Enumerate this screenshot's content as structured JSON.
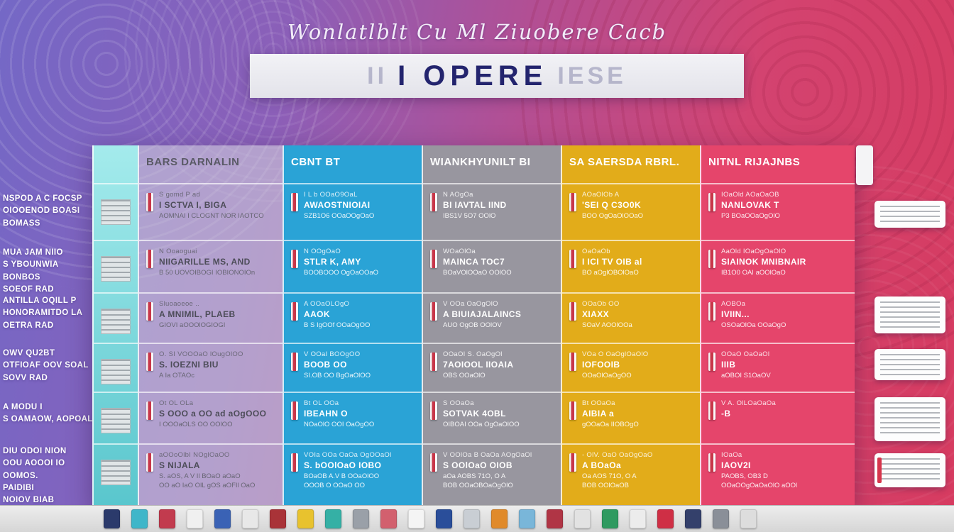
{
  "page": {
    "script_title": "Wonlatlblt Cu Ml Ziuobere Cacb",
    "banner": {
      "prefix": "II",
      "main": "I OPERE",
      "suffix": "IESE"
    }
  },
  "palette": {
    "teal": "#6fd3d8",
    "light": "#d5d5df",
    "blue": "#2aa3d6",
    "gray": "#98969f",
    "yellow": "#e2ac1a",
    "pink": "#e5456b",
    "background_left": "#7468c6",
    "background_right": "#d63b60"
  },
  "left_labels": [
    [
      "NSPOD A C FOCSP",
      "OIOOENOD BOASI",
      "BOMASS"
    ],
    [
      "MUA JAM NIIO",
      "S YBOUNWIA BONBOS",
      "SOEOF RAD"
    ],
    [
      "ANTILLA  OQILL P",
      "HONORAMITDO LA",
      "OETRA RAD"
    ],
    [
      "OWV QU2BT",
      "OTFIOAF OOV SOAL",
      "SOVV RAD"
    ],
    [
      "A  MODU I",
      "S OAMAOW, AOPOAL"
    ],
    [
      "DIU ODOI NION",
      "OOU AOOOI IO OOMOS.",
      "PAIDIBI",
      "NOIOV BIAB"
    ]
  ],
  "columns": [
    {
      "key": "light",
      "header": "BARS DARNALIN",
      "color": "#d5d5df",
      "rows": [
        {
          "top": "S gomd P ad",
          "title": "I SCTVA I, BIGA",
          "desc": "AOMNAI I CLOGNT NOR IAOTCO"
        },
        {
          "top": "N Ooaoguai",
          "title": "NIIGARILLE MS, AND",
          "desc": "B 50 UOVOIBOGI IOBIONOIOn"
        },
        {
          "top": "Sluoaoeoe ..",
          "title": "A MNIMIL, PLAEB",
          "desc": "GIOVI aOOOlOGIOGI"
        },
        {
          "top": "O. SI VOOOaO lOugOlOO",
          "title": "S. IOEZNI  BIU",
          "desc": "A Ia OTAOc"
        },
        {
          "top": "Ot OL OLa",
          "title": "S OOO a OO ad aOgOOO",
          "desc": "I OOOaOLS OO OOlOO"
        },
        {
          "top": "aOOoOlbI  NOglOaOO",
          "title": "S  NIJALA",
          "desc": "S. aOS, A V Il BOaO aOaO\nOO aO IaO OlL gOS aOFIl OaO"
        }
      ]
    },
    {
      "key": "blue",
      "header": "CBNT BT",
      "color": "#2aa3d6",
      "rows": [
        {
          "top": "I L b  OOaO9OaL",
          "title": "AWAOSTNIOIAI",
          "desc": "SZB1O6 OOaOOgOaO"
        },
        {
          "top": "N OOgOaO",
          "title": "STLR K, AMY",
          "desc": "BOOBOOO OgOaOOaO"
        },
        {
          "top": "A OOaOLOgO",
          "title": "AAOK",
          "desc": "B S IgOOf OOaOgOO"
        },
        {
          "top": "V OOaI  BOOgOO",
          "title": "BOOB OO",
          "desc": "SI.OB OO BgOaOlOO"
        },
        {
          "top": "Bt OL OOa",
          "title": "IBEAHN O",
          "desc": "NOaOlO OOI OaOgOO"
        },
        {
          "top": "VOIa OOa OaOa OgOOaOl",
          "title": "S. bOOlOaO IOBO",
          "desc": "BOaOB A.V B OOaOlOO\nOOOB O OOaO OO"
        }
      ]
    },
    {
      "key": "gray",
      "header": "WIANKHYUNILT BI",
      "color": "#98969f",
      "rows": [
        {
          "top": "N AOgOa",
          "title": "BI IAVTAL IIND",
          "desc": "IBS1V 5O7 OOlO"
        },
        {
          "top": "WOaOlOa",
          "title": "MAINCA TOC7",
          "desc": "BOaVOlOOaO OOlOO"
        },
        {
          "top": "V OOa OaOgOlO",
          "title": "A BIUIAJALAINCS",
          "desc": "AUO OgOB OOlOV"
        },
        {
          "top": "OOaOI  S. OaOgOl",
          "title": "7AOIOOL  IIOAIA",
          "desc": "OBS OOaOlO"
        },
        {
          "top": "S OOaOa",
          "title": "SOTVAK  4OBL",
          "desc": "OIBOAI OOa OgOaOlOO"
        },
        {
          "top": "V OOlOa  B OaOa AOgOaOl",
          "title": "S OOlOaO OIOB",
          "desc": "aOa AOBS 71O, O  A\nBOB OOaOBOaOgOlO"
        }
      ]
    },
    {
      "key": "yellow",
      "header": "SA SAERSDA RBRL.",
      "color": "#e2ac1a",
      "rows": [
        {
          "top": "AOaOlOb A",
          "title": "'SEI Q  C3O0K",
          "desc": "BOO OgOaOlOOaO"
        },
        {
          "top": "OaOaOb",
          "title": "I ICI TV OIB al",
          "desc": "BO aOglOBOlOaO"
        },
        {
          "top": "OOaOb OO",
          "title": "XIAXX",
          "desc": "SOaV AOOlOOa"
        },
        {
          "top": "VOa O  OaOglOaOlO",
          "title": "IOFOOIB",
          "desc": "OOaOlOaOgOO"
        },
        {
          "top": "Bt OOaOa",
          "title": "AIBIA a",
          "desc": "gOOaOa  IIOBOgO"
        },
        {
          "top": "- OlV.  OaO OaOgOaO",
          "title": "A BOaOa",
          "desc": "Oa AOS 71O, O  A\nBOB OOlOaOB"
        }
      ]
    },
    {
      "key": "pink",
      "header": "NITNL RIJAJNBS",
      "color": "#e5456b",
      "rows": [
        {
          "top": "IOaOld  AOaOaOB",
          "title": "NANLOVAK T",
          "desc": "P3 BOaOOaOgOlO"
        },
        {
          "top": "AaOld  IOaOgOaOlO",
          "title": "SIAINOK MNIBNAIR",
          "desc": "IB1O0 OAI aOOlOaO"
        },
        {
          "top": "AOBOa",
          "title": "IVIIN...",
          "desc": "OSOaOlOa OOaOgO"
        },
        {
          "top": "OOaO  OaOaOl",
          "title": "IIIB",
          "desc": "aOBOI S1OaOV"
        },
        {
          "top": "V  A. OlLOaOaOa",
          "title": "-B",
          "desc": ""
        },
        {
          "top": "IOaOa",
          "title": "IAOV2I",
          "desc": "PAOBS, OB3 D\nOOaOOgOaOaOlO  aOOl"
        }
      ]
    }
  ],
  "taskbar": {
    "icons": [
      "#2b3a6b",
      "#3fb6c9",
      "#c23b4e",
      "#f0f0f0",
      "#3a62b5",
      "#e8e8e8",
      "#a93338",
      "#e8c22e",
      "#35b0a5",
      "#9aa0a8",
      "#d2606e",
      "#f4f4f4",
      "#2a4e9a",
      "#c9ced4",
      "#e08a2a",
      "#79b6d9",
      "#b03545",
      "#e2e2e2",
      "#2f9a60",
      "#ececec",
      "#cf2f45",
      "#34406b",
      "#8a8f98",
      "#dddddd"
    ]
  }
}
